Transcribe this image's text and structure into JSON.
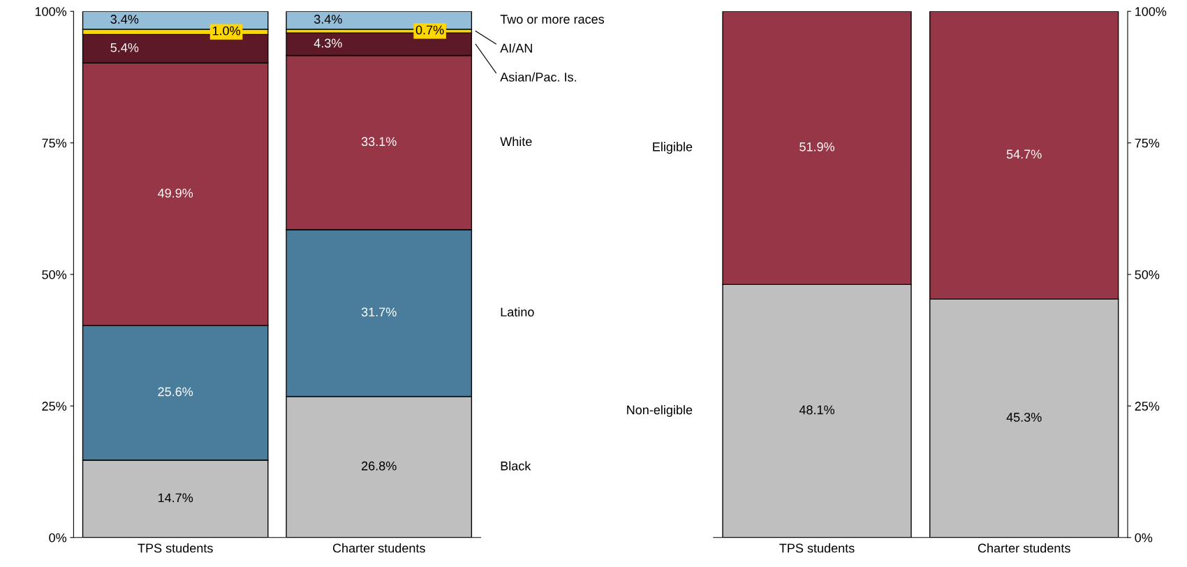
{
  "chart_data": [
    {
      "type": "bar",
      "stacked": true,
      "categories": [
        "TPS students",
        "Charter students"
      ],
      "ylim": [
        0,
        100
      ],
      "yticks": [
        {
          "value": 0,
          "label": "0%"
        },
        {
          "value": 25,
          "label": "25%"
        },
        {
          "value": 50,
          "label": "50%"
        },
        {
          "value": 75,
          "label": "75%"
        },
        {
          "value": 100,
          "label": "100%"
        }
      ],
      "grid": false,
      "series": [
        {
          "name": "Black",
          "color": "#bfbfbf",
          "values": [
            14.7,
            26.8
          ],
          "value_labels": [
            "14.7%",
            "26.8%"
          ]
        },
        {
          "name": "Latino",
          "color": "#4a7d9b",
          "values": [
            25.6,
            31.7
          ],
          "value_labels": [
            "25.6%",
            "31.7%"
          ]
        },
        {
          "name": "White",
          "color": "#963647",
          "values": [
            49.9,
            33.1
          ],
          "value_labels": [
            "49.9%",
            "33.1%"
          ]
        },
        {
          "name": "Asian/Pac. Is.",
          "color": "#5e1927",
          "values": [
            5.4,
            4.3
          ],
          "value_labels": [
            "5.4%",
            "4.3%"
          ]
        },
        {
          "name": "AI/AN",
          "color": "#ffd700",
          "values": [
            1.0,
            0.7
          ],
          "value_labels": [
            "1.0%",
            "0.7%"
          ]
        },
        {
          "name": "Two or more races",
          "color": "#94bdd7",
          "values": [
            3.4,
            3.4
          ],
          "value_labels": [
            "3.4%",
            "3.4%"
          ]
        }
      ]
    },
    {
      "type": "bar",
      "stacked": true,
      "categories": [
        "TPS students",
        "Charter students"
      ],
      "ylim": [
        0,
        100
      ],
      "yticks": [
        {
          "value": 0,
          "label": "0%"
        },
        {
          "value": 25,
          "label": "25%"
        },
        {
          "value": 50,
          "label": "50%"
        },
        {
          "value": 75,
          "label": "75%"
        },
        {
          "value": 100,
          "label": "100%"
        }
      ],
      "grid": false,
      "series": [
        {
          "name": "Non-eligible",
          "color": "#bfbfbf",
          "values": [
            48.1,
            45.3
          ],
          "value_labels": [
            "48.1%",
            "45.3%"
          ]
        },
        {
          "name": "Eligible",
          "color": "#963647",
          "values": [
            51.9,
            54.7
          ],
          "value_labels": [
            "51.9%",
            "54.7%"
          ]
        }
      ]
    }
  ]
}
